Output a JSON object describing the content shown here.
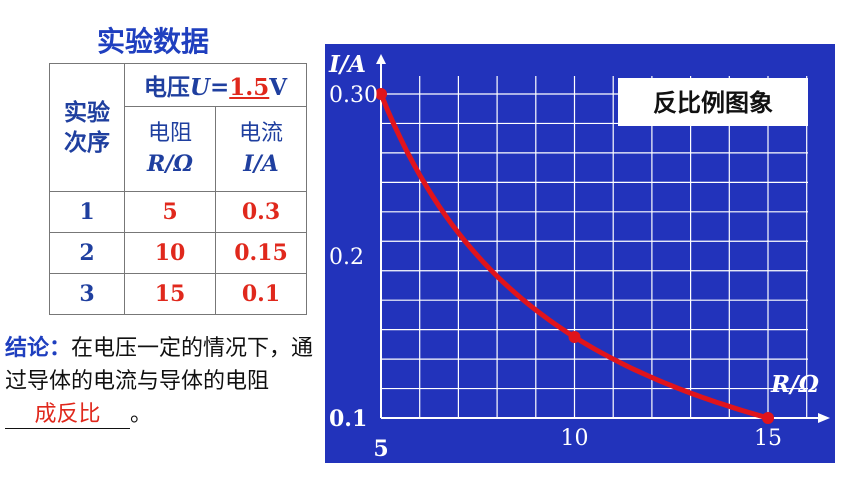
{
  "title": "实验数据",
  "table": {
    "order_header": [
      "实验",
      "次序"
    ],
    "voltage_prefix": "电压",
    "voltage_symbol": "U",
    "voltage_eq": "=",
    "voltage_value": "1.5",
    "voltage_unit": "V",
    "resistance_label": "电阻",
    "resistance_symbol": "R/Ω",
    "current_label": "电流",
    "current_symbol": "I/A",
    "rows": [
      {
        "idx": "1",
        "r": "5",
        "i": "0.3"
      },
      {
        "idx": "2",
        "r": "10",
        "i": "0.15"
      },
      {
        "idx": "3",
        "r": "15",
        "i": "0.1"
      }
    ]
  },
  "conclusion": {
    "label": "结论：",
    "text1": "在电压一定的情况下，通过导体的电流与导体的电阻",
    "answer": "成反比",
    "end": "。"
  },
  "chart_data": {
    "type": "line",
    "legend_box": "反比例图象",
    "ylabel": "I/A",
    "xlabel": "R/Ω",
    "x": [
      5,
      10,
      15
    ],
    "series": [
      {
        "values": [
          0.3,
          0.15,
          0.1
        ]
      }
    ],
    "xlim": [
      5,
      15
    ],
    "ylim": [
      0.1,
      0.3
    ],
    "x_ticks": [
      "5",
      "10",
      "15"
    ],
    "y_ticks": [
      "0.1",
      "0.2",
      "0.30"
    ],
    "grid": true,
    "colors": {
      "background": "#2233bb",
      "grid": "#ffffff",
      "curve": "#e0141c"
    }
  }
}
